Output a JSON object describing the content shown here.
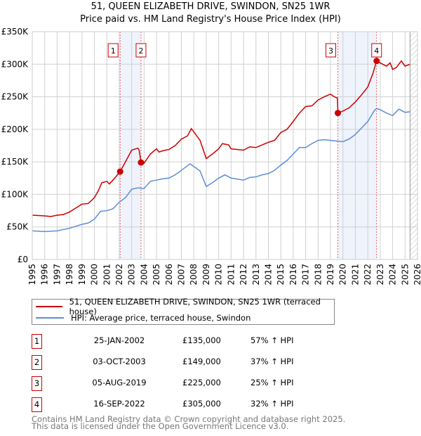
{
  "chart_data": {
    "type": "line",
    "title": "51, QUEEN ELIZABETH DRIVE, SWINDON, SN25 1WR",
    "subtitle": "Price paid vs. HM Land Registry's House Price Index (HPI)",
    "xlim": [
      1995,
      2026
    ],
    "ylim": [
      0,
      350000
    ],
    "x_ticks": [
      "1995",
      "1996",
      "1997",
      "1998",
      "1999",
      "2000",
      "2001",
      "2002",
      "2003",
      "2004",
      "2005",
      "2006",
      "2007",
      "2008",
      "2009",
      "2010",
      "2011",
      "2012",
      "2013",
      "2014",
      "2015",
      "2016",
      "2017",
      "2018",
      "2019",
      "2020",
      "2021",
      "2022",
      "2023",
      "2024",
      "2025",
      "2026"
    ],
    "y_ticks": [
      {
        "v": 0,
        "label": "£0"
      },
      {
        "v": 50000,
        "label": "£50K"
      },
      {
        "v": 100000,
        "label": "£100K"
      },
      {
        "v": 150000,
        "label": "£150K"
      },
      {
        "v": 200000,
        "label": "£200K"
      },
      {
        "v": 250000,
        "label": "£250K"
      },
      {
        "v": 300000,
        "label": "£300K"
      },
      {
        "v": 350000,
        "label": "£350K"
      }
    ],
    "grid": true,
    "series": [
      {
        "name": "51, QUEEN ELIZABETH DRIVE, SWINDON, SN25 1WR (terraced house)",
        "color": "#cc0000",
        "points": [
          [
            1995,
            68
          ],
          [
            1996,
            67
          ],
          [
            1996.5,
            66
          ],
          [
            1997,
            68
          ],
          [
            1997.5,
            69
          ],
          [
            1998,
            73
          ],
          [
            1998.5,
            79
          ],
          [
            1999,
            85
          ],
          [
            1999.5,
            86
          ],
          [
            2000,
            95
          ],
          [
            2000.3,
            105
          ],
          [
            2000.6,
            118
          ],
          [
            2001,
            120
          ],
          [
            2001.2,
            116
          ],
          [
            2001.5,
            122
          ],
          [
            2002.07,
            135
          ],
          [
            2002.5,
            150
          ],
          [
            2003,
            168
          ],
          [
            2003.5,
            171
          ],
          [
            2003.6,
            168
          ],
          [
            2003.75,
            149
          ],
          [
            2004,
            148
          ],
          [
            2004.5,
            162
          ],
          [
            2005,
            170
          ],
          [
            2005.2,
            165
          ],
          [
            2005.5,
            167
          ],
          [
            2006,
            169
          ],
          [
            2006.5,
            175
          ],
          [
            2007,
            185
          ],
          [
            2007.5,
            190
          ],
          [
            2007.8,
            201
          ],
          [
            2008,
            196
          ],
          [
            2008.5,
            183
          ],
          [
            2009,
            155
          ],
          [
            2009.5,
            162
          ],
          [
            2010,
            170
          ],
          [
            2010.3,
            178
          ],
          [
            2010.8,
            176
          ],
          [
            2011,
            170
          ],
          [
            2012,
            168
          ],
          [
            2012.5,
            173
          ],
          [
            2013,
            172
          ],
          [
            2013.5,
            176
          ],
          [
            2014,
            180
          ],
          [
            2014.5,
            183
          ],
          [
            2015,
            195
          ],
          [
            2015.5,
            200
          ],
          [
            2016,
            212
          ],
          [
            2016.5,
            225
          ],
          [
            2017,
            235
          ],
          [
            2017.5,
            236
          ],
          [
            2018,
            245
          ],
          [
            2018.5,
            250
          ],
          [
            2019,
            254
          ],
          [
            2019.3,
            250
          ],
          [
            2019.55,
            248
          ],
          [
            2019.6,
            225
          ],
          [
            2020,
            228
          ],
          [
            2020.5,
            233
          ],
          [
            2021,
            242
          ],
          [
            2021.5,
            253
          ],
          [
            2022,
            265
          ],
          [
            2022.4,
            285
          ],
          [
            2022.71,
            305
          ],
          [
            2023,
            302
          ],
          [
            2023.5,
            297
          ],
          [
            2023.8,
            302
          ],
          [
            2024,
            292
          ],
          [
            2024.3,
            295
          ],
          [
            2024.7,
            305
          ],
          [
            2025,
            297
          ],
          [
            2025.4,
            300
          ]
        ]
      },
      {
        "name": "HPI: Average price, terraced house, Swindon",
        "color": "#5b8fd4",
        "points": [
          [
            1995,
            44
          ],
          [
            1996,
            43
          ],
          [
            1997,
            44
          ],
          [
            1998,
            48
          ],
          [
            1999,
            54
          ],
          [
            1999.5,
            56
          ],
          [
            2000,
            62
          ],
          [
            2000.5,
            74
          ],
          [
            2001,
            75
          ],
          [
            2001.5,
            78
          ],
          [
            2002,
            88
          ],
          [
            2002.5,
            95
          ],
          [
            2003,
            108
          ],
          [
            2003.5,
            110
          ],
          [
            2004,
            109
          ],
          [
            2004.5,
            120
          ],
          [
            2005,
            122
          ],
          [
            2005.5,
            124
          ],
          [
            2006,
            125
          ],
          [
            2006.5,
            130
          ],
          [
            2007,
            137
          ],
          [
            2007.7,
            147
          ],
          [
            2008.5,
            136
          ],
          [
            2009,
            112
          ],
          [
            2009.5,
            118
          ],
          [
            2010,
            125
          ],
          [
            2010.5,
            130
          ],
          [
            2011,
            125
          ],
          [
            2012,
            122
          ],
          [
            2012.5,
            126
          ],
          [
            2013,
            127
          ],
          [
            2013.5,
            130
          ],
          [
            2014,
            132
          ],
          [
            2014.5,
            137
          ],
          [
            2015,
            145
          ],
          [
            2015.5,
            152
          ],
          [
            2016,
            162
          ],
          [
            2016.5,
            172
          ],
          [
            2017,
            172
          ],
          [
            2017.5,
            178
          ],
          [
            2018,
            183
          ],
          [
            2018.5,
            184
          ],
          [
            2019,
            183
          ],
          [
            2019.5,
            182
          ],
          [
            2020,
            181
          ],
          [
            2020.5,
            185
          ],
          [
            2021,
            192
          ],
          [
            2021.5,
            202
          ],
          [
            2022,
            212
          ],
          [
            2022.5,
            228
          ],
          [
            2022.7,
            232
          ],
          [
            2023,
            230
          ],
          [
            2023.5,
            225
          ],
          [
            2024,
            221
          ],
          [
            2024.5,
            231
          ],
          [
            2025,
            226
          ],
          [
            2025.4,
            227
          ]
        ]
      }
    ],
    "sales": [
      {
        "id": "1",
        "x": 2002.07,
        "y": 135
      },
      {
        "id": "2",
        "x": 2003.75,
        "y": 149
      },
      {
        "id": "3",
        "x": 2019.59,
        "y": 225
      },
      {
        "id": "4",
        "x": 2022.71,
        "y": 305
      }
    ],
    "forecast_from": 2025.4,
    "legend_position": "below"
  },
  "legend": {
    "red": "51, QUEEN ELIZABETH DRIVE, SWINDON, SN25 1WR (terraced house)",
    "blue": "HPI: Average price, terraced house, Swindon"
  },
  "transactions": [
    {
      "id": "1",
      "date": "25-JAN-2002",
      "price": "£135,000",
      "hpi": "57% ↑ HPI"
    },
    {
      "id": "2",
      "date": "03-OCT-2003",
      "price": "£149,000",
      "hpi": "37% ↑ HPI"
    },
    {
      "id": "3",
      "date": "05-AUG-2019",
      "price": "£225,000",
      "hpi": "25% ↑ HPI"
    },
    {
      "id": "4",
      "date": "16-SEP-2022",
      "price": "£305,000",
      "hpi": "32% ↑ HPI"
    }
  ],
  "footer": {
    "line1": "Contains HM Land Registry data © Crown copyright and database right 2025.",
    "line2": "This data is licensed under the Open Government Licence v3.0."
  }
}
